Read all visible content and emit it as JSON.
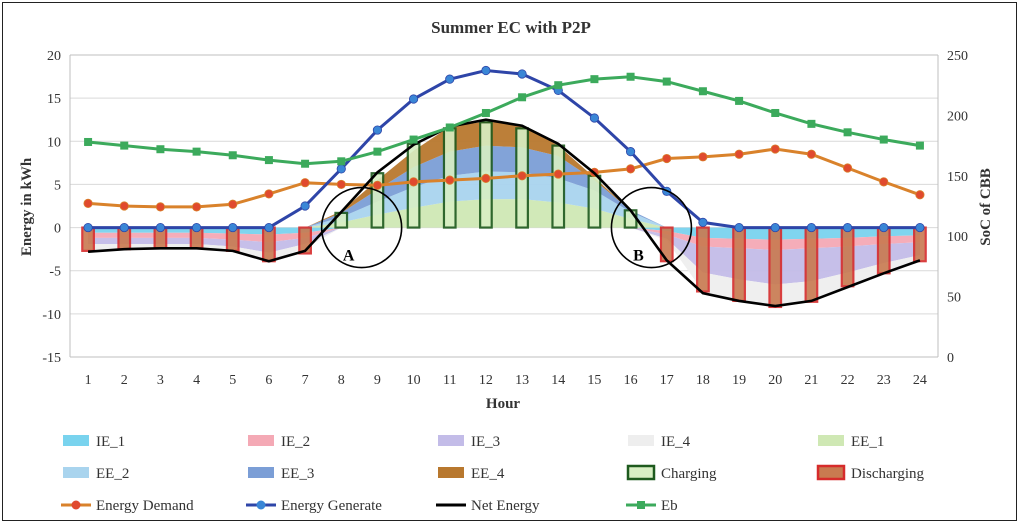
{
  "chart_data": {
    "type": "area",
    "title": "Summer EC with P2P",
    "xlabel": "Hour",
    "ylabel": "Energy in kWh",
    "y2label": "SoC of CBB",
    "categories": [
      1,
      2,
      3,
      4,
      5,
      6,
      7,
      8,
      9,
      10,
      11,
      12,
      13,
      14,
      15,
      16,
      17,
      18,
      19,
      20,
      21,
      22,
      23,
      24
    ],
    "ylim": [
      -15,
      20
    ],
    "yticks": [
      -15,
      -10,
      -5,
      0,
      5,
      10,
      15,
      20
    ],
    "y2lim": [
      0,
      250
    ],
    "y2ticks": [
      0,
      50,
      100,
      150,
      200,
      250
    ],
    "grid": "horizontal",
    "legend_placement": "bottom",
    "annotations": [
      {
        "text": "A",
        "hour": 7.9
      },
      {
        "text": "B",
        "hour": 16.3
      }
    ],
    "stacked_export": [
      {
        "name": "EE_1",
        "color": "#cfe8b4",
        "values": [
          0,
          0,
          0,
          0,
          0,
          0,
          0,
          0.6,
          1.5,
          2.3,
          3.0,
          3.3,
          3.3,
          2.9,
          2.2,
          1.0,
          0,
          0,
          0,
          0,
          0,
          0,
          0,
          0
        ]
      },
      {
        "name": "EE_2",
        "color": "#a9d4ee",
        "values": [
          0,
          0,
          0,
          0,
          0,
          0,
          0,
          0.6,
          1.5,
          2.4,
          3.0,
          3.2,
          3.1,
          2.8,
          2.1,
          0.8,
          0,
          0,
          0,
          0,
          0,
          0,
          0,
          0
        ]
      },
      {
        "name": "EE_3",
        "color": "#7b9ed6",
        "values": [
          0,
          0,
          0,
          0,
          0,
          0,
          0,
          0.5,
          1.4,
          2.3,
          2.8,
          3.0,
          2.9,
          2.6,
          1.2,
          0.2,
          0,
          0,
          0,
          0,
          0,
          0,
          0,
          0
        ]
      },
      {
        "name": "EE_4",
        "color": "#b8782e",
        "values": [
          0,
          0,
          0,
          0,
          0,
          0,
          0,
          0.2,
          1.1,
          1.9,
          2.9,
          2.8,
          2.6,
          1.2,
          0.3,
          0,
          0,
          0,
          0,
          0,
          0,
          0,
          0,
          0
        ]
      }
    ],
    "stacked_import": [
      {
        "name": "IE_1",
        "color": "#79d3ee",
        "values": [
          -0.6,
          -0.6,
          -0.6,
          -0.6,
          -0.7,
          -0.8,
          -0.6,
          0,
          0,
          0,
          0,
          0,
          0,
          0,
          0,
          0,
          -0.4,
          -1.2,
          -1.3,
          -1.4,
          -1.3,
          -1.2,
          -1.0,
          -0.9
        ]
      },
      {
        "name": "IE_2",
        "color": "#f4a9b5",
        "values": [
          -0.6,
          -0.6,
          -0.6,
          -0.6,
          -0.7,
          -0.9,
          -0.6,
          0,
          0,
          0,
          0,
          0,
          0,
          0,
          0,
          0,
          -0.4,
          -1.0,
          -1.1,
          -1.2,
          -1.1,
          -1.0,
          -0.9,
          -0.8
        ]
      },
      {
        "name": "IE_3",
        "color": "#c3bce8",
        "values": [
          -0.7,
          -0.7,
          -0.7,
          -0.7,
          -0.8,
          -1.2,
          -0.7,
          0,
          0,
          0,
          0,
          0,
          0,
          0,
          0,
          0,
          -0.5,
          -3.0,
          -3.6,
          -4.0,
          -3.8,
          -3.0,
          -2.2,
          -1.5
        ]
      },
      {
        "name": "IE_4",
        "color": "#eeeeee",
        "values": [
          -0.7,
          -0.5,
          -0.4,
          -0.4,
          -0.5,
          -1.0,
          -0.5,
          0,
          0,
          0,
          0,
          0,
          0,
          0,
          0,
          0,
          -0.2,
          -2.2,
          -2.6,
          -2.6,
          -2.4,
          -1.6,
          -1.1,
          -0.8
        ]
      }
    ],
    "bars": [
      {
        "name": "Charging",
        "fill": "#d8efc4",
        "stroke": "#1e5a1e",
        "values": [
          0,
          0,
          0,
          0,
          0,
          0,
          0,
          1.7,
          6.3,
          9.7,
          11.5,
          12.2,
          11.5,
          9.5,
          6.0,
          2.0,
          0,
          0,
          0,
          0,
          0,
          0,
          0,
          0
        ]
      },
      {
        "name": "Discharging",
        "fill": "#c97a50",
        "stroke": "#d62b2b",
        "values": [
          -2.7,
          -2.5,
          -2.4,
          -2.4,
          -2.7,
          -3.9,
          -3.0,
          0,
          0,
          0,
          0,
          0,
          0,
          0,
          0,
          0,
          -3.9,
          -7.4,
          -8.5,
          -9.2,
          -8.6,
          -6.8,
          -5.3,
          -3.9
        ]
      }
    ],
    "series": [
      {
        "name": "Energy Demand",
        "axis": "left",
        "color": "#e04a2e",
        "line": "#d9822b",
        "marker": "circle",
        "values": [
          2.8,
          2.5,
          2.4,
          2.4,
          2.7,
          3.9,
          5.2,
          5.0,
          4.9,
          5.3,
          5.5,
          5.7,
          6.0,
          6.2,
          6.4,
          6.8,
          8.0,
          8.2,
          8.5,
          9.1,
          8.5,
          6.9,
          5.3,
          3.8
        ]
      },
      {
        "name": "Energy Generate",
        "axis": "left",
        "color": "#3a86d6",
        "line": "#2e45a8",
        "marker": "circle",
        "values": [
          0,
          0,
          0,
          0,
          0,
          0,
          2.5,
          6.8,
          11.3,
          14.9,
          17.2,
          18.2,
          17.8,
          15.9,
          12.7,
          8.8,
          4.2,
          0.6,
          0,
          0,
          0,
          0,
          0,
          0
        ]
      },
      {
        "name": "Net Energy",
        "axis": "left",
        "color": "#000000",
        "line": "#000000",
        "marker": "none",
        "values": [
          -2.8,
          -2.5,
          -2.4,
          -2.4,
          -2.7,
          -3.9,
          -2.7,
          1.8,
          6.4,
          9.6,
          11.7,
          12.5,
          11.8,
          9.7,
          6.3,
          2.0,
          -3.8,
          -7.6,
          -8.5,
          -9.1,
          -8.5,
          -6.9,
          -5.3,
          -3.8
        ]
      },
      {
        "name": "Eb",
        "axis": "right",
        "color": "#3caa5c",
        "line": "#3caa5c",
        "marker": "square",
        "values": [
          178,
          175,
          172,
          170,
          167,
          163,
          160,
          162,
          170,
          180,
          190,
          202,
          215,
          225,
          230,
          232,
          228,
          220,
          212,
          202,
          193,
          186,
          180,
          175
        ]
      }
    ],
    "legend": [
      [
        "IE_1",
        "IE_2",
        "IE_3",
        "IE_4",
        "EE_1"
      ],
      [
        "EE_2",
        "EE_3",
        "EE_4",
        "Charging",
        "Discharging"
      ],
      [
        "Energy Demand",
        "Energy Generate",
        "Net Energy",
        "Eb"
      ]
    ]
  }
}
